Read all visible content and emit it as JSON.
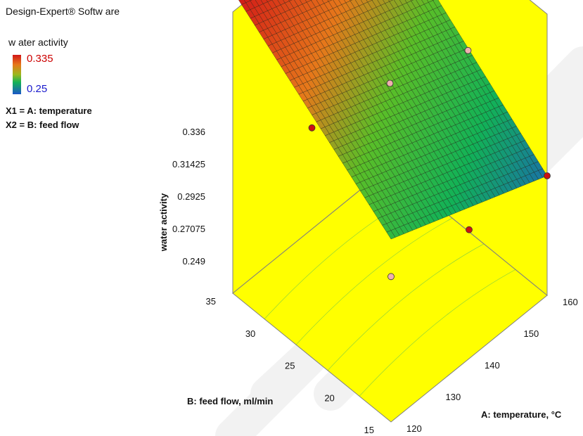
{
  "software_label": "Design-Expert® Softw are",
  "legend": {
    "title": "w ater activity",
    "high": "0.335",
    "low": "0.25",
    "high_color": "#cc0000",
    "low_color": "#1a1acc"
  },
  "factors": {
    "x1": "X1 = A: temperature",
    "x2": "X2 = B: feed flow"
  },
  "colors": {
    "box_fill": "#ffff00",
    "box_edge": "#7f7f7f",
    "point_red": "#cc1111",
    "point_pink": "#f0b0b0",
    "watermark": "#f2f2f2"
  },
  "chart_data": {
    "type": "surface3d",
    "zlabel": "water activity",
    "xlabel": "A: temperature, °C",
    "ylabel": "B: feed flow, ml/min",
    "z_ticks": [
      "0.336",
      "0.31425",
      "0.2925",
      "0.27075",
      "0.249"
    ],
    "x_ticks": [
      "120",
      "130",
      "140",
      "150",
      "160"
    ],
    "y_ticks": [
      "15",
      "20",
      "25",
      "30",
      "35"
    ],
    "x_range": [
      120,
      160
    ],
    "y_range": [
      15,
      35
    ],
    "z_range": [
      0.249,
      0.336
    ],
    "surface_corners": [
      {
        "temperature": 120,
        "feed_flow": 35,
        "water_activity": 0.336
      },
      {
        "temperature": 160,
        "feed_flow": 35,
        "water_activity": 0.312
      },
      {
        "temperature": 120,
        "feed_flow": 15,
        "water_activity": 0.285
      },
      {
        "temperature": 160,
        "feed_flow": 15,
        "water_activity": 0.258
      }
    ],
    "design_points": [
      {
        "temperature": 120,
        "feed_flow": 35,
        "water_activity": 0.336,
        "above_surface": false
      },
      {
        "temperature": 140,
        "feed_flow": 35,
        "water_activity": 0.326,
        "above_surface": true
      },
      {
        "temperature": 160,
        "feed_flow": 35,
        "water_activity": 0.317,
        "above_surface": true
      },
      {
        "temperature": 120,
        "feed_flow": 25,
        "water_activity": 0.305,
        "above_surface": true
      },
      {
        "temperature": 140,
        "feed_flow": 25,
        "water_activity": 0.297,
        "above_surface": false
      },
      {
        "temperature": 160,
        "feed_flow": 25,
        "water_activity": 0.284,
        "above_surface": false
      },
      {
        "temperature": 120,
        "feed_flow": 15,
        "water_activity": 0.269,
        "above_surface": false
      },
      {
        "temperature": 140,
        "feed_flow": 15,
        "water_activity": 0.262,
        "above_surface": true
      },
      {
        "temperature": 160,
        "feed_flow": 15,
        "water_activity": 0.258,
        "above_surface": true
      }
    ]
  }
}
